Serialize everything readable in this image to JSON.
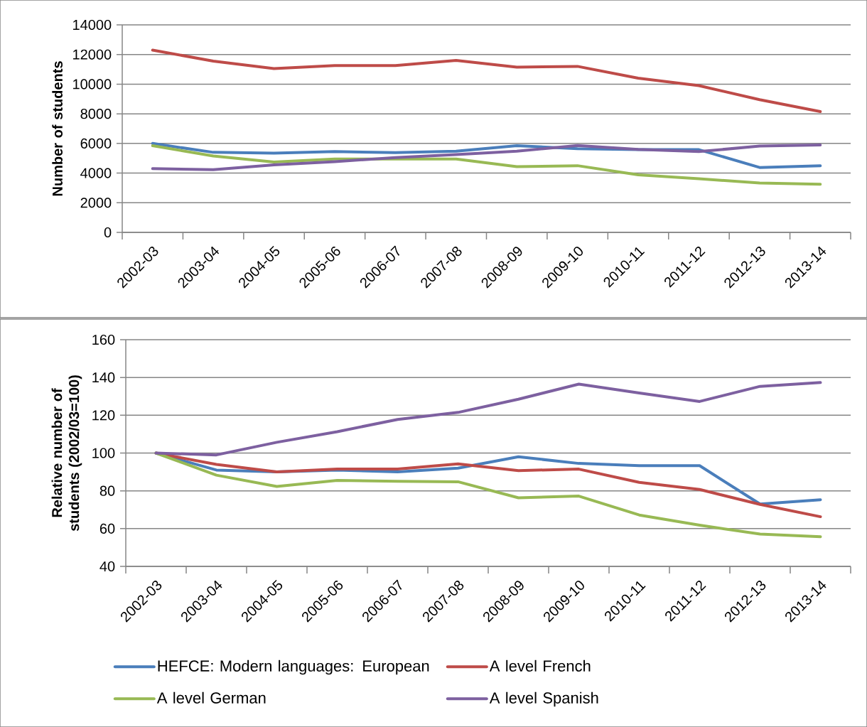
{
  "chart_data": [
    {
      "type": "line",
      "ylabel": "Number of students",
      "categories": [
        "2002-03",
        "2003-04",
        "2004-05",
        "2005-06",
        "2006-07",
        "2007-08",
        "2008-09",
        "2009-10",
        "2010-11",
        "2011-12",
        "2012-13",
        "2013-14"
      ],
      "ylim": [
        0,
        14000
      ],
      "yticks": [
        0,
        2000,
        4000,
        6000,
        8000,
        10000,
        12000,
        14000
      ],
      "grid": "y",
      "legend": false,
      "marker": "none",
      "line_style": "solid",
      "series": [
        {
          "color": "#4a7ebb",
          "values": [
            6000,
            5400,
            5350,
            5450,
            5380,
            5480,
            5850,
            5650,
            5580,
            5580,
            4380,
            4500
          ]
        },
        {
          "color": "#be4b48",
          "values": [
            12300,
            11550,
            11050,
            11250,
            11250,
            11600,
            11150,
            11200,
            10400,
            9900,
            8950,
            8150
          ]
        },
        {
          "color": "#98b954",
          "values": [
            5850,
            5150,
            4750,
            4950,
            4950,
            4950,
            4430,
            4500,
            3880,
            3620,
            3330,
            3250
          ]
        },
        {
          "color": "#7d60a0",
          "values": [
            4300,
            4230,
            4550,
            4770,
            5050,
            5250,
            5480,
            5860,
            5600,
            5450,
            5820,
            5900
          ]
        }
      ]
    },
    {
      "type": "line",
      "ylabel": "Relative number of students (2002/03=100)",
      "categories": [
        "2002-03",
        "2003-04",
        "2004-05",
        "2005-06",
        "2006-07",
        "2007-08",
        "2008-09",
        "2009-10",
        "2010-11",
        "2011-12",
        "2012-13",
        "2013-14"
      ],
      "ylim": [
        40,
        160
      ],
      "yticks": [
        40,
        60,
        80,
        100,
        120,
        140,
        160
      ],
      "grid": "y",
      "legend": "bottom",
      "marker": "none",
      "line_style": "solid",
      "series": [
        {
          "name": "HEFCE: Modern languages: European",
          "color": "#4a7ebb",
          "values": [
            100,
            91,
            90,
            91,
            90,
            92,
            98,
            94.5,
            93.3,
            93.3,
            73,
            75.3
          ]
        },
        {
          "name": "A level French",
          "color": "#be4b48",
          "values": [
            100,
            94,
            90,
            91.5,
            91.5,
            94.3,
            90.7,
            91.5,
            84.5,
            80.7,
            72.8,
            66.3
          ]
        },
        {
          "name": "A level German",
          "color": "#98b954",
          "values": [
            100,
            88.3,
            82.3,
            85.5,
            85,
            84.8,
            76.3,
            77.2,
            67.2,
            61.8,
            57.1,
            55.7
          ]
        },
        {
          "name": "A level Spanish",
          "color": "#7d60a0",
          "values": [
            100,
            99,
            105.7,
            111.3,
            117.8,
            121.5,
            128.5,
            136.5,
            131.8,
            127.3,
            135.3,
            137.3
          ]
        }
      ]
    }
  ]
}
